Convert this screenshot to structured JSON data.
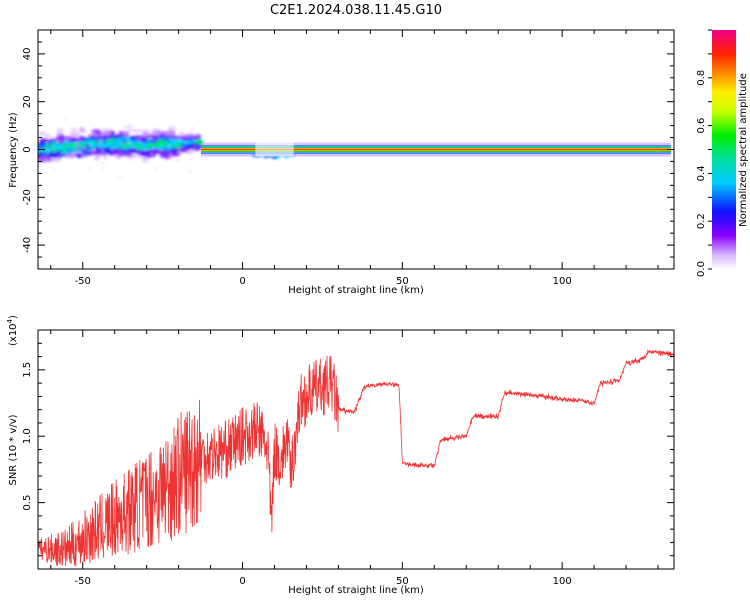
{
  "figure": {
    "title": "C2E1.2024.038.11.45.G10"
  },
  "chart_data": [
    {
      "type": "heatmap",
      "xlabel": "Height of straight line (km)",
      "ylabel": "Frequency (Hz)",
      "xlim": [
        -64,
        135
      ],
      "ylim": [
        -50,
        50
      ],
      "x_ticks": [
        -50,
        0,
        50,
        100
      ],
      "y_ticks": [
        -40,
        -20,
        0,
        20,
        40
      ],
      "colorbar": {
        "label": "Normalized spectral amplitude",
        "range": [
          0,
          1
        ],
        "ticks": [
          "0.0",
          "0.2",
          "0.4",
          "0.6",
          "0.8"
        ],
        "colormap": "rainbow (white-purple-blue-cyan-green-yellow-orange-red-magenta)"
      },
      "features": [
        {
          "x": [
            -64,
            -20
          ],
          "y_center": [
            -3,
            7
          ],
          "spread_hz": 8,
          "amplitude": "0.2-0.5",
          "note": "scattered noisy region"
        },
        {
          "x": [
            -20,
            -13
          ],
          "y_center": [
            -2,
            2
          ],
          "spread_hz": 4,
          "amplitude": "0.2-0.5"
        },
        {
          "x": [
            -13,
            4
          ],
          "y_center": 0,
          "spread_hz": 1,
          "amplitude": "0.8-1.0"
        },
        {
          "x": [
            4,
            16
          ],
          "y_center": -2,
          "spread_hz": 3,
          "amplitude": "0.3-0.6"
        },
        {
          "x": [
            16,
            134
          ],
          "y_center": 0,
          "spread_hz": 1,
          "amplitude": "0.8-1.0"
        }
      ]
    },
    {
      "type": "line",
      "xlabel": "Height of straight line (km)",
      "ylabel": "SNR (10 * v/v)",
      "y_multiplier_label": "(x10",
      "y_multiplier_exp": "4",
      "y_multiplier_suffix": ")",
      "xlim": [
        -64,
        135
      ],
      "ylim": [
        0,
        1.8
      ],
      "x_ticks": [
        -50,
        0,
        50,
        100
      ],
      "y_ticks": [
        "0.5",
        "1.0",
        "1.5"
      ],
      "color": "#ee3333",
      "series": [
        {
          "x": [
            -64,
            -55,
            -45,
            -35,
            -25,
            -18,
            -13,
            -5,
            0,
            5,
            8,
            9,
            10,
            12,
            14,
            15,
            18,
            22,
            28,
            30,
            35,
            38,
            45,
            49,
            50,
            55,
            60,
            62,
            70,
            72,
            80,
            82,
            90,
            100,
            105,
            110,
            112,
            118,
            120,
            125,
            127,
            135
          ],
          "y": [
            0.15,
            0.15,
            0.3,
            0.45,
            0.6,
            0.75,
            0.85,
            0.9,
            1.0,
            1.05,
            0.9,
            0.3,
            0.9,
            0.8,
            1.0,
            0.7,
            1.25,
            1.35,
            1.4,
            1.2,
            1.18,
            1.37,
            1.4,
            1.38,
            0.8,
            0.78,
            0.78,
            0.97,
            1.0,
            1.15,
            1.15,
            1.33,
            1.31,
            1.28,
            1.27,
            1.25,
            1.4,
            1.42,
            1.55,
            1.58,
            1.64,
            1.62
          ]
        }
      ]
    }
  ]
}
